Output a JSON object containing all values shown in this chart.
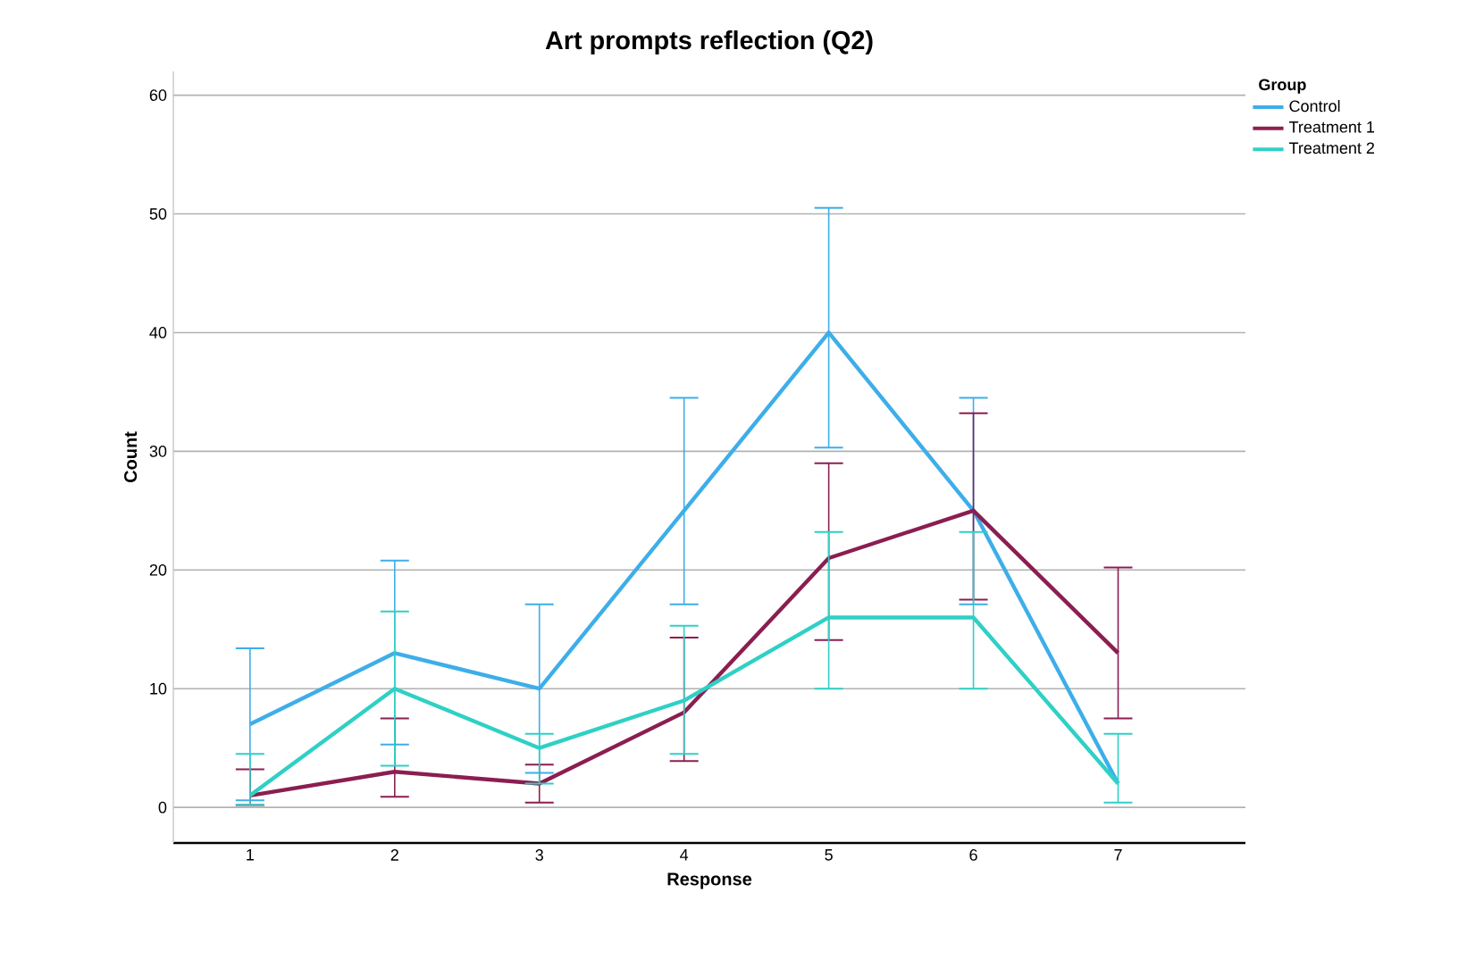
{
  "chart_data": {
    "type": "line",
    "title": "Art prompts reflection (Q2)",
    "xlabel": "Response",
    "ylabel": "Count",
    "legend_title": "Group",
    "categories": [
      "1",
      "2",
      "3",
      "4",
      "5",
      "6",
      "7"
    ],
    "series": [
      {
        "name": "Control",
        "color": "#3daee9",
        "values": [
          7,
          13,
          10,
          25,
          40,
          25,
          2
        ],
        "errors": [
          [
            0.6,
            13.4
          ],
          [
            5.3,
            20.8
          ],
          [
            2.9,
            17.1
          ],
          [
            17.1,
            34.5
          ],
          [
            30.3,
            50.5
          ],
          [
            17.1,
            34.5
          ],
          null
        ]
      },
      {
        "name": "Treatment 1",
        "color": "#8b1e50",
        "values": [
          1,
          3,
          2,
          8,
          21,
          25,
          13
        ],
        "errors": [
          [
            0.2,
            3.2
          ],
          [
            0.9,
            7.5
          ],
          [
            0.4,
            3.6
          ],
          [
            3.9,
            14.3
          ],
          [
            14.1,
            29
          ],
          [
            17.5,
            33.2
          ],
          [
            7.5,
            20.2
          ]
        ]
      },
      {
        "name": "Treatment 2",
        "color": "#2fd0c5",
        "values": [
          1,
          10,
          5,
          9,
          16,
          16,
          2
        ],
        "errors": [
          [
            0.2,
            4.5
          ],
          [
            3.5,
            16.5
          ],
          [
            2,
            6.2
          ],
          [
            4.5,
            15.3
          ],
          [
            10,
            23.2
          ],
          [
            10,
            23.2
          ],
          [
            0.4,
            6.2
          ]
        ]
      }
    ],
    "ylim": [
      -3,
      62
    ],
    "yticks": [
      0,
      10,
      20,
      30,
      40,
      50,
      60
    ],
    "grid": "y",
    "legend": "top right",
    "marker": "none",
    "line_style": "solid"
  }
}
